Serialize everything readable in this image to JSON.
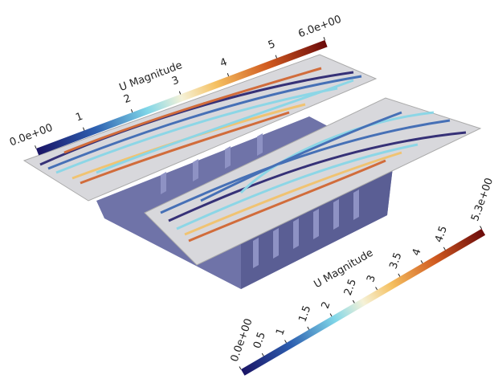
{
  "colorbars": [
    {
      "title": "U Magnitude",
      "range": [
        0,
        6
      ],
      "ticks": [
        {
          "value": 0,
          "label": "0.0e+00"
        },
        1,
        2,
        3,
        4,
        5,
        {
          "value": 6,
          "label": "6.0e+00"
        }
      ]
    },
    {
      "title": "U Magnitude",
      "range": [
        0,
        5.3
      ],
      "ticks": [
        {
          "value": 0,
          "label": "0.0e+00"
        },
        0.5,
        1,
        1.5,
        2,
        2.5,
        3,
        3.5,
        4,
        4.5,
        {
          "value": 5.3,
          "label": "5.3e+00"
        }
      ]
    }
  ]
}
